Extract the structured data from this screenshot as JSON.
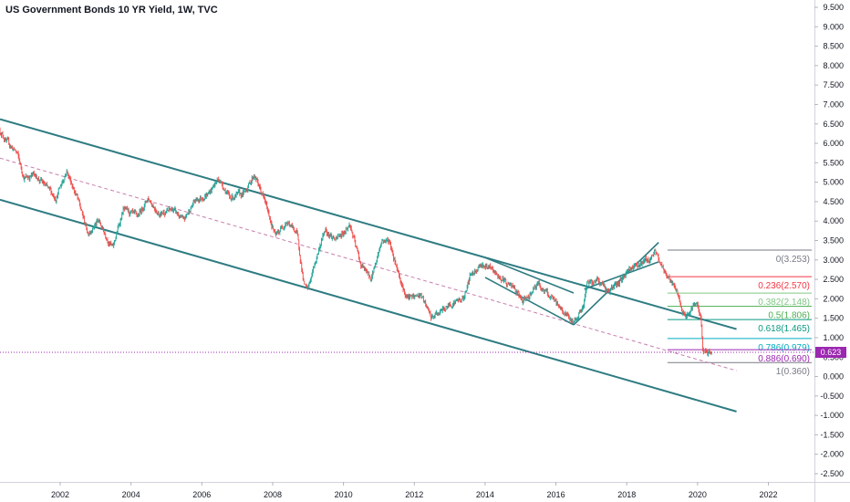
{
  "title": "US Government Bonds 10 YR Yield, 1W, TVC",
  "chart_data": {
    "type": "candlestick",
    "ylim": [
      -2.75,
      9.75
    ],
    "xlim": [
      2000.3,
      2023.3
    ],
    "y_ticks": [
      "9.500",
      "9.000",
      "8.500",
      "8.000",
      "7.500",
      "7.000",
      "6.500",
      "6.000",
      "5.500",
      "5.000",
      "4.500",
      "4.000",
      "3.500",
      "3.000",
      "2.500",
      "2.000",
      "1.500",
      "1.000",
      "0.500",
      "0.000",
      "-0.500",
      "-1.000",
      "-1.500",
      "-2.000",
      "-2.500"
    ],
    "x_ticks": [
      "2002",
      "2004",
      "2006",
      "2008",
      "2010",
      "2012",
      "2014",
      "2016",
      "2018",
      "2020",
      "2022"
    ],
    "current_price": "0.623",
    "colors": {
      "up": "#26a69a",
      "down": "#ef5350",
      "channel": "#2e7c82",
      "midline": "#c77dad",
      "price_line": "#9c27b0"
    },
    "price_path": [
      [
        2000.3,
        6.35
      ],
      [
        2000.5,
        6.05
      ],
      [
        2000.8,
        5.75
      ],
      [
        2001.0,
        5.1
      ],
      [
        2001.3,
        5.2
      ],
      [
        2001.6,
        4.9
      ],
      [
        2001.9,
        4.6
      ],
      [
        2002.2,
        5.3
      ],
      [
        2002.5,
        4.6
      ],
      [
        2002.8,
        3.7
      ],
      [
        2003.1,
        4.0
      ],
      [
        2003.5,
        3.3
      ],
      [
        2003.8,
        4.3
      ],
      [
        2004.2,
        4.1
      ],
      [
        2004.5,
        4.6
      ],
      [
        2004.8,
        4.2
      ],
      [
        2005.2,
        4.3
      ],
      [
        2005.5,
        4.0
      ],
      [
        2005.8,
        4.5
      ],
      [
        2006.2,
        4.7
      ],
      [
        2006.5,
        5.1
      ],
      [
        2006.8,
        4.6
      ],
      [
        2007.2,
        4.7
      ],
      [
        2007.5,
        5.2
      ],
      [
        2007.8,
        4.5
      ],
      [
        2008.1,
        3.6
      ],
      [
        2008.4,
        4.0
      ],
      [
        2008.7,
        3.7
      ],
      [
        2008.9,
        2.4
      ],
      [
        2009.0,
        2.2
      ],
      [
        2009.3,
        3.2
      ],
      [
        2009.5,
        3.8
      ],
      [
        2009.8,
        3.5
      ],
      [
        2010.2,
        3.9
      ],
      [
        2010.5,
        2.9
      ],
      [
        2010.8,
        2.5
      ],
      [
        2011.1,
        3.5
      ],
      [
        2011.3,
        3.5
      ],
      [
        2011.6,
        2.6
      ],
      [
        2011.8,
        2.0
      ],
      [
        2012.2,
        2.1
      ],
      [
        2012.5,
        1.5
      ],
      [
        2012.8,
        1.7
      ],
      [
        2013.1,
        1.9
      ],
      [
        2013.4,
        2.0
      ],
      [
        2013.6,
        2.6
      ],
      [
        2013.9,
        2.9
      ],
      [
        2014.1,
        2.8
      ],
      [
        2014.5,
        2.5
      ],
      [
        2014.8,
        2.3
      ],
      [
        2015.1,
        1.9
      ],
      [
        2015.5,
        2.4
      ],
      [
        2015.8,
        2.1
      ],
      [
        2016.1,
        1.8
      ],
      [
        2016.5,
        1.4
      ],
      [
        2016.8,
        1.8
      ],
      [
        2016.9,
        2.4
      ],
      [
        2017.2,
        2.5
      ],
      [
        2017.5,
        2.2
      ],
      [
        2017.8,
        2.4
      ],
      [
        2018.1,
        2.8
      ],
      [
        2018.4,
        2.9
      ],
      [
        2018.7,
        3.05
      ],
      [
        2018.8,
        3.22
      ],
      [
        2018.95,
        2.95
      ],
      [
        2019.1,
        2.7
      ],
      [
        2019.3,
        2.4
      ],
      [
        2019.5,
        2.0
      ],
      [
        2019.6,
        1.6
      ],
      [
        2019.7,
        1.5
      ],
      [
        2019.9,
        1.85
      ],
      [
        2020.0,
        1.8
      ],
      [
        2020.1,
        1.55
      ],
      [
        2020.17,
        0.7
      ],
      [
        2020.3,
        0.6
      ],
      [
        2020.4,
        0.623
      ]
    ],
    "annotations": {
      "channel_upper": [
        [
          2000.3,
          6.62
        ],
        [
          2021.1,
          1.22
        ]
      ],
      "channel_mid": [
        [
          2000.3,
          5.62
        ],
        [
          2021.1,
          0.15
        ]
      ],
      "channel_lower": [
        [
          2000.3,
          4.55
        ],
        [
          2021.1,
          -0.9
        ]
      ],
      "wedge_top": [
        [
          2014.0,
          3.06
        ],
        [
          2016.5,
          2.15
        ]
      ],
      "wedge_bottom": [
        [
          2014.0,
          2.55
        ],
        [
          2016.5,
          1.33
        ]
      ],
      "rising_top": [
        [
          2016.5,
          1.33
        ],
        [
          2018.9,
          3.45
        ]
      ],
      "rising_bottom": [
        [
          2016.8,
          2.25
        ],
        [
          2018.9,
          2.95
        ]
      ]
    },
    "fibonacci": [
      {
        "ratio": "0",
        "value": "3.253",
        "level": 3.253,
        "color": "#787b86"
      },
      {
        "ratio": "0.236",
        "value": "2.570",
        "level": 2.57,
        "color": "#f23645"
      },
      {
        "ratio": "0.382",
        "value": "2.148",
        "level": 2.148,
        "color": "#81c784"
      },
      {
        "ratio": "0.5",
        "value": "1.806",
        "level": 1.806,
        "color": "#4caf50"
      },
      {
        "ratio": "0.618",
        "value": "1.465",
        "level": 1.465,
        "color": "#089981"
      },
      {
        "ratio": "0.786",
        "value": "0.979",
        "level": 0.979,
        "color": "#00acc1"
      },
      {
        "ratio": "0.886",
        "value": "0.690",
        "level": 0.69,
        "color": "#9c27b0"
      },
      {
        "ratio": "1",
        "value": "0.360",
        "level": 0.36,
        "color": "#787b86"
      }
    ]
  }
}
